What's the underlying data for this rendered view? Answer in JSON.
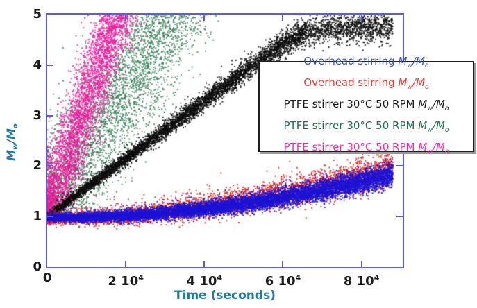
{
  "figure": {
    "background": "#ffffff"
  },
  "math": {
    "m": "M",
    "w": "w",
    "slash": "/",
    "o": "o"
  },
  "legend": {
    "items": [
      {
        "prefix": "Overhead stirring",
        "color": "#3c55b4"
      },
      {
        "prefix": "Overhead stirring",
        "color": "#e8423c"
      },
      {
        "prefix": "PTFE stirrer 30°C 50 RPM",
        "color": "#1c1c1c"
      },
      {
        "prefix": "PTFE stirrer 30°C 50 RPM",
        "color": "#1f7150"
      },
      {
        "prefix": "PTFE stirrer 30°C 50 RPM",
        "color": "#ee2fa7"
      }
    ]
  },
  "chart_data": {
    "type": "scatter",
    "title": "",
    "xlabel": "Time (seconds)",
    "ylabel": "Mw/Mo",
    "xlim": [
      0,
      90500
    ],
    "ylim": [
      0,
      5
    ],
    "grid": false,
    "legend_position": "upper right overlay",
    "axis_color": "#5b5ae0",
    "axis_label_color": "#2478a6",
    "tick_label_color": "#1b1b1b",
    "x_ticks": [
      {
        "value": 0,
        "base": "0",
        "sup": ""
      },
      {
        "value": 20000,
        "base": "2 10",
        "sup": "4"
      },
      {
        "value": 40000,
        "base": "4 10",
        "sup": "4"
      },
      {
        "value": 60000,
        "base": "6 10",
        "sup": "4"
      },
      {
        "value": 80000,
        "base": "8 10",
        "sup": "4"
      }
    ],
    "y_ticks": [
      {
        "value": 0,
        "label": "0"
      },
      {
        "value": 1,
        "label": "1"
      },
      {
        "value": 2,
        "label": "2"
      },
      {
        "value": 3,
        "label": "3"
      },
      {
        "value": 4,
        "label": "4"
      },
      {
        "value": 5,
        "label": "5"
      }
    ],
    "series": [
      {
        "name": "PTFE stirrer 30°C 50 RPM Mw/Mo (green)",
        "color": "#2e7a4f",
        "alpha": 0.75,
        "n": 3800,
        "mode": "v",
        "trend": [
          [
            0,
            1
          ],
          [
            7800,
            2
          ],
          [
            15600,
            3
          ],
          [
            23400,
            4
          ],
          [
            31200,
            5
          ]
        ],
        "sigma_t": 5800,
        "mw_jitter": 0.05,
        "mw_range": [
          0.93,
          5.45
        ],
        "cluster": {
          "n": 350,
          "t_sigma": 900,
          "mw_sigma": 0.06
        }
      },
      {
        "name": "PTFE stirrer 30°C 50 RPM Mw/Mo (pink)",
        "color": "#f3149b",
        "alpha": 0.8,
        "n": 3800,
        "mode": "v",
        "trend": [
          [
            0,
            1
          ],
          [
            4400,
            2
          ],
          [
            8800,
            3
          ],
          [
            13200,
            4
          ],
          [
            17600,
            5
          ]
        ],
        "sigma_t": 2600,
        "mw_jitter": 0.05,
        "mw_range": [
          0.93,
          5.45
        ],
        "cluster": {
          "n": 400,
          "t_sigma": 900,
          "mw_sigma": 0.06
        }
      },
      {
        "name": "PTFE stirrer 30°C 50 RPM Mw/Mo (black)",
        "color": "#0d0d0d",
        "alpha": 0.85,
        "n": 7000,
        "mode": "h",
        "t_max": 88000,
        "trend": [
          [
            0,
            1
          ],
          [
            10000,
            1.57
          ],
          [
            20000,
            2.14
          ],
          [
            30000,
            2.71
          ],
          [
            40000,
            3.28
          ],
          [
            50000,
            3.85
          ],
          [
            60000,
            4.42
          ],
          [
            66000,
            4.66
          ],
          [
            72000,
            4.72
          ],
          [
            80000,
            4.74
          ],
          [
            88000,
            4.74
          ]
        ],
        "sigma": [
          0.04,
          0.16
        ],
        "sparse_after": 66000,
        "sparse_keep": 0.6,
        "outlier_frac": 0.04,
        "outlier_scale": 0.12
      },
      {
        "name": "Overhead stirring Mw/Mo (red)",
        "color": "#df201a",
        "alpha": 0.85,
        "n": 5200,
        "mode": "h",
        "t_max": 88000,
        "trend": [
          [
            0,
            0.96
          ],
          [
            10000,
            0.97
          ],
          [
            20000,
            1.0
          ],
          [
            30000,
            1.08
          ],
          [
            40000,
            1.17
          ],
          [
            50000,
            1.29
          ],
          [
            60000,
            1.43
          ],
          [
            70000,
            1.59
          ],
          [
            80000,
            1.77
          ],
          [
            88000,
            1.93
          ]
        ],
        "sigma": [
          0.05,
          0.17
        ],
        "outlier_frac": 0.09,
        "outlier_scale": 0.16
      },
      {
        "name": "Overhead stirring Mw/Mo (blue)",
        "color": "#1c13d6",
        "alpha": 0.9,
        "n": 9500,
        "mode": "h",
        "t_max": 88000,
        "trend": [
          [
            0,
            0.98
          ],
          [
            10000,
            0.985
          ],
          [
            20000,
            1.01
          ],
          [
            30000,
            1.07
          ],
          [
            40000,
            1.15
          ],
          [
            50000,
            1.25
          ],
          [
            60000,
            1.37
          ],
          [
            70000,
            1.52
          ],
          [
            80000,
            1.68
          ],
          [
            88000,
            1.82
          ]
        ],
        "sigma": [
          0.035,
          0.12
        ],
        "outlier_frac": 0.03,
        "outlier_scale": 0.1
      }
    ]
  }
}
